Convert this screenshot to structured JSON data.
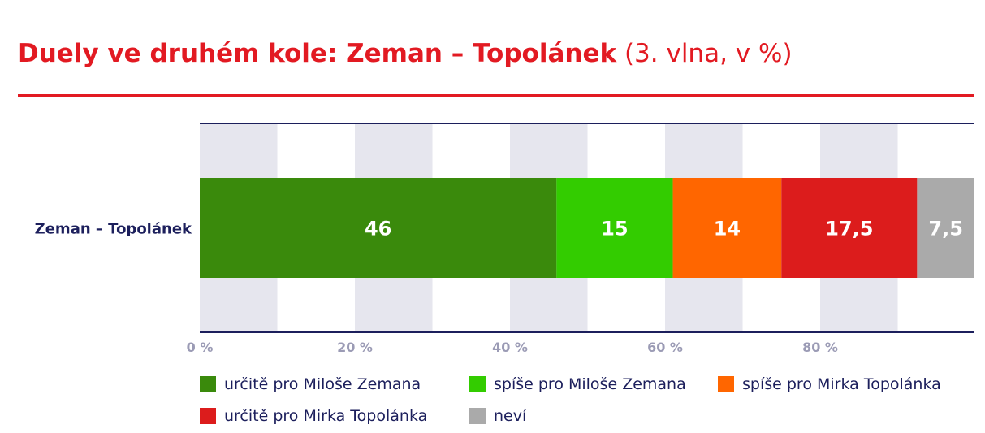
{
  "title": {
    "main": "Duely ve druhém kole: Zeman – Topolánek",
    "suffix": "(3. vlna, v %)"
  },
  "colors": {
    "accent": "#e21a22",
    "axis_line": "#1c1f5c",
    "grid_band": "#e6e6ee",
    "tick_label": "#9b9bb5",
    "category_label": "#1c1f5c"
  },
  "chart_data": {
    "type": "bar",
    "orientation": "horizontal",
    "stacked": true,
    "categories": [
      "Zeman – Topolánek"
    ],
    "series": [
      {
        "name": "určitě pro Miloše Zemana",
        "values": [
          46
        ],
        "label": "46",
        "color": "#3a8a0c"
      },
      {
        "name": "spíše pro Miloše Zemana",
        "values": [
          15
        ],
        "label": "15",
        "color": "#33cc00"
      },
      {
        "name": "spíše pro Mirka Topolánka",
        "values": [
          14
        ],
        "label": "14",
        "color": "#ff6600"
      },
      {
        "name": "určitě pro Mirka Topolánka",
        "values": [
          17.5
        ],
        "label": "17,5",
        "color": "#dc1c1c"
      },
      {
        "name": "neví",
        "values": [
          7.5
        ],
        "label": "7,5",
        "color": "#aaaaaa"
      }
    ],
    "xlim": [
      0,
      100
    ],
    "xticks": [
      0,
      20,
      40,
      60,
      80
    ],
    "xtick_labels": [
      "0 %",
      "20 %",
      "40 %",
      "60 %",
      "80 %"
    ],
    "grid": "alternating vertical bands",
    "legend_position": "bottom"
  }
}
